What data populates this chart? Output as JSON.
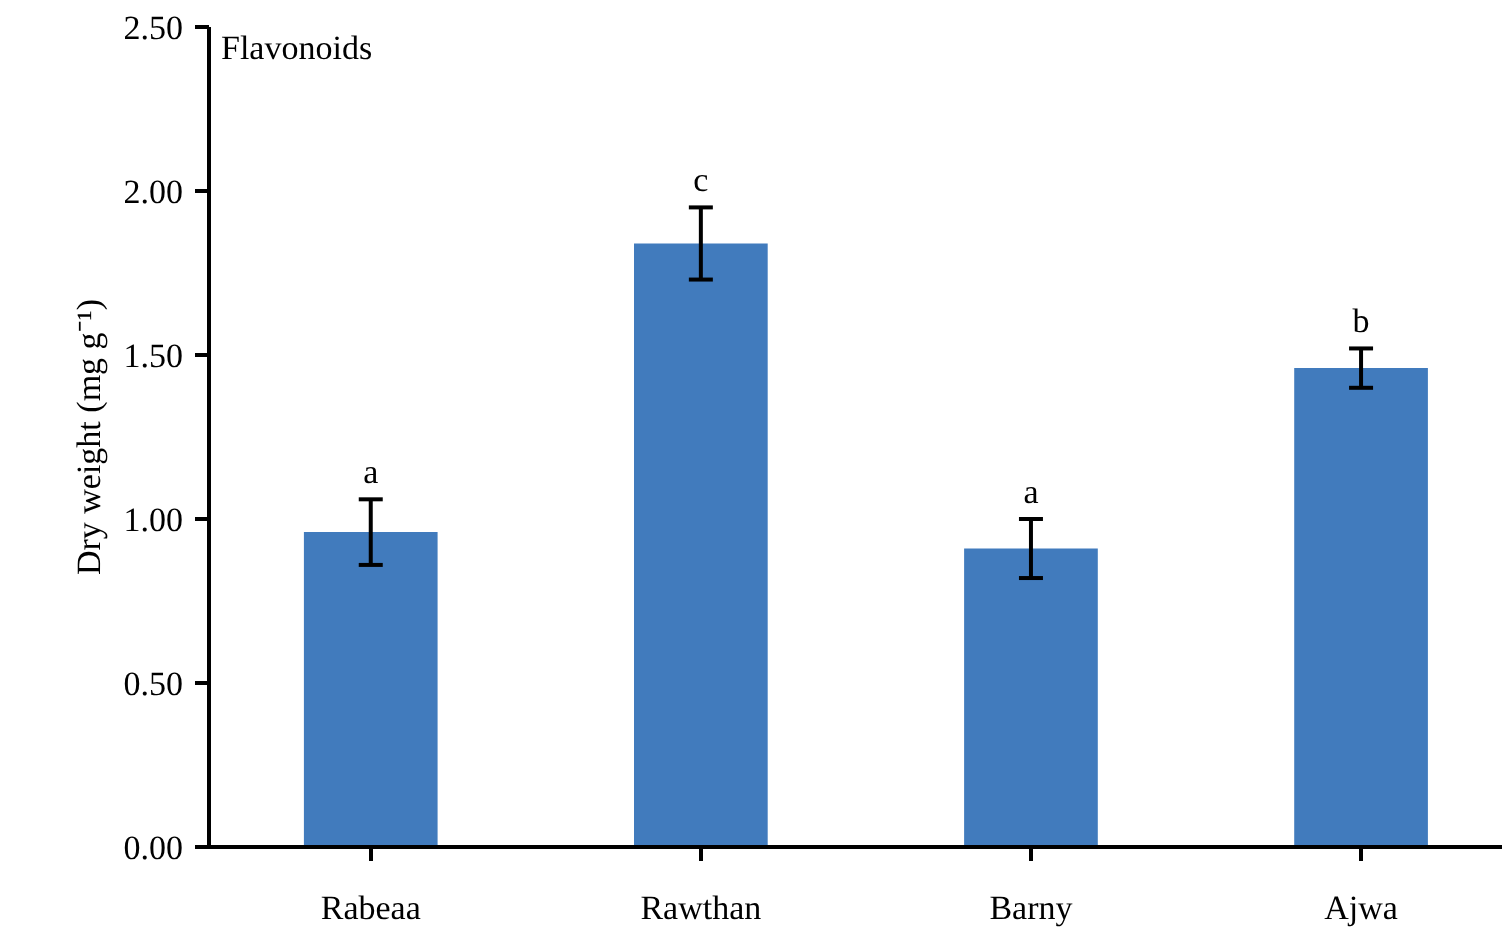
{
  "chart_data": {
    "type": "bar",
    "title": "Flavonoids",
    "ylabel": "Dry weight (mg g⁻¹)",
    "categories": [
      "Rabeaa",
      "Rawthan",
      "Barny",
      "Ajwa"
    ],
    "values": [
      0.96,
      1.84,
      0.91,
      1.46
    ],
    "errors": [
      0.1,
      0.11,
      0.09,
      0.06
    ],
    "color": "#417bbd",
    "ylim": [
      0,
      2.5
    ],
    "yticks": [
      {
        "value": 0,
        "label": "0.00"
      },
      {
        "value": 0.5,
        "label": "0.50"
      },
      {
        "value": 1.0,
        "label": "1.00"
      },
      {
        "value": 1.5,
        "label": "1.50"
      },
      {
        "value": 2.0,
        "label": "2.00"
      },
      {
        "value": 2.5,
        "label": "2.50"
      }
    ],
    "annotations": [
      {
        "text": "a",
        "x": "Rabeaa",
        "y": 1.06
      },
      {
        "text": "c",
        "x": "Rawthan",
        "y": 1.95
      },
      {
        "text": "a",
        "x": "Barny",
        "y": 1.0
      },
      {
        "text": "b",
        "x": "Ajwa",
        "y": 1.52
      }
    ],
    "grid": false
  }
}
